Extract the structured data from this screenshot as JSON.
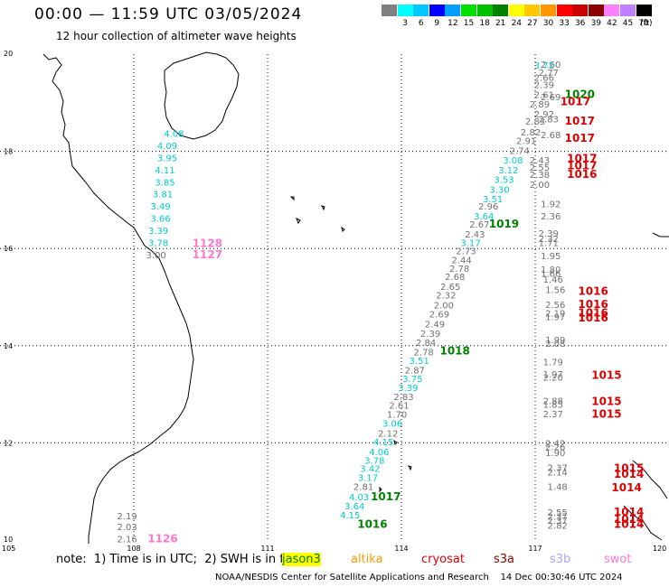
{
  "header": {
    "title": "00:00 — 11:59 UTC 03/05/2024",
    "subtitle": "12 hour collection of altimeter wave heights"
  },
  "legend": {
    "unit": "(ft)",
    "bins": [
      {
        "label": "",
        "color": "#808080"
      },
      {
        "label": "3",
        "color": "#00ffff"
      },
      {
        "label": "6",
        "color": "#00c8ff"
      },
      {
        "label": "9",
        "color": "#0000ff"
      },
      {
        "label": "12",
        "color": "#00a0ff"
      },
      {
        "label": "15",
        "color": "#00e000"
      },
      {
        "label": "18",
        "color": "#00c000"
      },
      {
        "label": "21",
        "color": "#008000"
      },
      {
        "label": "24",
        "color": "#ffff00"
      },
      {
        "label": "27",
        "color": "#ffc800"
      },
      {
        "label": "30",
        "color": "#ff9600"
      },
      {
        "label": "33",
        "color": "#ff0000"
      },
      {
        "label": "36",
        "color": "#c80000"
      },
      {
        "label": "39",
        "color": "#8b0000"
      },
      {
        "label": "42",
        "color": "#ff80ff"
      },
      {
        "label": "45",
        "color": "#c080ff"
      },
      {
        "label": "70",
        "color": "#000000"
      }
    ]
  },
  "map": {
    "lon_labels": [
      "105",
      "108",
      "111",
      "114",
      "117",
      "120"
    ],
    "lat_labels": [
      "20",
      "18",
      "16",
      "14",
      "12",
      "10"
    ],
    "readings": [
      {
        "text": "4.08",
        "c": "#00cccc",
        "lon": 108.9,
        "lat": 18.3
      },
      {
        "text": "4.09",
        "c": "#00cccc",
        "lon": 108.75,
        "lat": 18.05
      },
      {
        "text": "3.95",
        "c": "#00cccc",
        "lon": 108.75,
        "lat": 17.8
      },
      {
        "text": "4.11",
        "c": "#00cccc",
        "lon": 108.7,
        "lat": 17.55
      },
      {
        "text": "3.85",
        "c": "#00cccc",
        "lon": 108.7,
        "lat": 17.3
      },
      {
        "text": "3.81",
        "c": "#00cccc",
        "lon": 108.65,
        "lat": 17.05
      },
      {
        "text": "3.49",
        "c": "#00cccc",
        "lon": 108.6,
        "lat": 16.8
      },
      {
        "text": "3.66",
        "c": "#00cccc",
        "lon": 108.6,
        "lat": 16.55
      },
      {
        "text": "3.39",
        "c": "#00cccc",
        "lon": 108.55,
        "lat": 16.3
      },
      {
        "text": "3.78",
        "c": "#00cccc",
        "lon": 108.55,
        "lat": 16.05
      },
      {
        "text": "3.00",
        "c": "#707070",
        "lon": 108.5,
        "lat": 15.8
      },
      {
        "text": "2.19",
        "c": "#707070",
        "lon": 107.85,
        "lat": 10.43
      },
      {
        "text": "2.03",
        "c": "#707070",
        "lon": 107.85,
        "lat": 10.2
      },
      {
        "text": "2.16",
        "c": "#707070",
        "lon": 107.85,
        "lat": 9.95
      },
      {
        "text": "2.60",
        "c": "#707070",
        "lon": 117.35,
        "lat": 19.72
      },
      {
        "text": "3.72",
        "c": "#00cccc",
        "lon": 117.2,
        "lat": 19.7
      },
      {
        "text": "2.77",
        "c": "#707070",
        "lon": 117.3,
        "lat": 19.55
      },
      {
        "text": "2.66",
        "c": "#707070",
        "lon": 117.2,
        "lat": 19.45
      },
      {
        "text": "2.39",
        "c": "#707070",
        "lon": 117.2,
        "lat": 19.3
      },
      {
        "text": "2.61",
        "c": "#707070",
        "lon": 117.2,
        "lat": 19.1
      },
      {
        "text": "2.69",
        "c": "#707070",
        "lon": 117.35,
        "lat": 19.05
      },
      {
        "text": "2.89",
        "c": "#707070",
        "lon": 117.1,
        "lat": 18.9
      },
      {
        "text": "2.92",
        "c": "#707070",
        "lon": 117.2,
        "lat": 18.7
      },
      {
        "text": "2.83",
        "c": "#707070",
        "lon": 117.3,
        "lat": 18.6
      },
      {
        "text": "2.83",
        "c": "#707070",
        "lon": 117.0,
        "lat": 18.55
      },
      {
        "text": "2.82",
        "c": "#707070",
        "lon": 116.9,
        "lat": 18.33
      },
      {
        "text": "2.68",
        "c": "#707070",
        "lon": 117.35,
        "lat": 18.27
      },
      {
        "text": "2.91",
        "c": "#707070",
        "lon": 116.8,
        "lat": 18.15
      },
      {
        "text": "2.74",
        "c": "#707070",
        "lon": 116.65,
        "lat": 17.95
      },
      {
        "text": "2.43",
        "c": "#707070",
        "lon": 117.1,
        "lat": 17.75
      },
      {
        "text": "2.55",
        "c": "#707070",
        "lon": 117.1,
        "lat": 17.6
      },
      {
        "text": "3.08",
        "c": "#00cccc",
        "lon": 116.5,
        "lat": 17.75
      },
      {
        "text": "3.12",
        "c": "#00cccc",
        "lon": 116.4,
        "lat": 17.55
      },
      {
        "text": "2.38",
        "c": "#707070",
        "lon": 117.1,
        "lat": 17.45
      },
      {
        "text": "3.53",
        "c": "#00cccc",
        "lon": 116.3,
        "lat": 17.35
      },
      {
        "text": "2.00",
        "c": "#707070",
        "lon": 117.1,
        "lat": 17.25
      },
      {
        "text": "3.30",
        "c": "#00cccc",
        "lon": 116.2,
        "lat": 17.15
      },
      {
        "text": "3.51",
        "c": "#00cccc",
        "lon": 116.05,
        "lat": 16.95
      },
      {
        "text": "1.92",
        "c": "#707070",
        "lon": 117.35,
        "lat": 16.85
      },
      {
        "text": "2.96",
        "c": "#707070",
        "lon": 115.95,
        "lat": 16.8
      },
      {
        "text": "3.64",
        "c": "#00cccc",
        "lon": 115.85,
        "lat": 16.6
      },
      {
        "text": "2.36",
        "c": "#707070",
        "lon": 117.35,
        "lat": 16.6
      },
      {
        "text": "2.67",
        "c": "#707070",
        "lon": 115.75,
        "lat": 16.43
      },
      {
        "text": "2.43",
        "c": "#707070",
        "lon": 115.65,
        "lat": 16.23
      },
      {
        "text": "2.39",
        "c": "#707070",
        "lon": 117.3,
        "lat": 16.25
      },
      {
        "text": "2.32",
        "c": "#707070",
        "lon": 117.3,
        "lat": 16.13
      },
      {
        "text": "1.71",
        "c": "#707070",
        "lon": 117.3,
        "lat": 16.05
      },
      {
        "text": "3.17",
        "c": "#00cccc",
        "lon": 115.55,
        "lat": 16.05
      },
      {
        "text": "2.73",
        "c": "#707070",
        "lon": 115.45,
        "lat": 15.88
      },
      {
        "text": "1.95",
        "c": "#707070",
        "lon": 117.35,
        "lat": 15.78
      },
      {
        "text": "2.44",
        "c": "#707070",
        "lon": 115.35,
        "lat": 15.7
      },
      {
        "text": "2.78",
        "c": "#707070",
        "lon": 115.3,
        "lat": 15.52
      },
      {
        "text": "1.80",
        "c": "#707070",
        "lon": 117.35,
        "lat": 15.5
      },
      {
        "text": "1.66",
        "c": "#707070",
        "lon": 117.35,
        "lat": 15.42
      },
      {
        "text": "2.68",
        "c": "#707070",
        "lon": 115.2,
        "lat": 15.35
      },
      {
        "text": "1.46",
        "c": "#707070",
        "lon": 117.4,
        "lat": 15.3
      },
      {
        "text": "2.65",
        "c": "#707070",
        "lon": 115.1,
        "lat": 15.15
      },
      {
        "text": "1.56",
        "c": "#707070",
        "lon": 117.45,
        "lat": 15.08
      },
      {
        "text": "2.32",
        "c": "#707070",
        "lon": 115.0,
        "lat": 14.97
      },
      {
        "text": "2.00",
        "c": "#707070",
        "lon": 114.95,
        "lat": 14.77
      },
      {
        "text": "2.56",
        "c": "#707070",
        "lon": 117.45,
        "lat": 14.78
      },
      {
        "text": "2.69",
        "c": "#707070",
        "lon": 114.85,
        "lat": 14.58
      },
      {
        "text": "2.19",
        "c": "#707070",
        "lon": 117.45,
        "lat": 14.6
      },
      {
        "text": "1.97",
        "c": "#707070",
        "lon": 117.45,
        "lat": 14.53
      },
      {
        "text": "2.49",
        "c": "#707070",
        "lon": 114.75,
        "lat": 14.38
      },
      {
        "text": "2.39",
        "c": "#707070",
        "lon": 114.65,
        "lat": 14.18
      },
      {
        "text": "2.84",
        "c": "#707070",
        "lon": 114.55,
        "lat": 14.0
      },
      {
        "text": "1.99",
        "c": "#707070",
        "lon": 117.45,
        "lat": 14.05
      },
      {
        "text": "2.08",
        "c": "#707070",
        "lon": 117.45,
        "lat": 13.98
      },
      {
        "text": "2.78",
        "c": "#707070",
        "lon": 114.5,
        "lat": 13.8
      },
      {
        "text": "3.51",
        "c": "#00cccc",
        "lon": 114.4,
        "lat": 13.62
      },
      {
        "text": "1.79",
        "c": "#707070",
        "lon": 117.4,
        "lat": 13.6
      },
      {
        "text": "2.87",
        "c": "#707070",
        "lon": 114.3,
        "lat": 13.43
      },
      {
        "text": "1.97",
        "c": "#707070",
        "lon": 117.4,
        "lat": 13.35
      },
      {
        "text": "2.20",
        "c": "#707070",
        "lon": 117.4,
        "lat": 13.28
      },
      {
        "text": "3.75",
        "c": "#00cccc",
        "lon": 114.25,
        "lat": 13.25
      },
      {
        "text": "3.39",
        "c": "#00cccc",
        "lon": 114.15,
        "lat": 13.07
      },
      {
        "text": "2.83",
        "c": "#707070",
        "lon": 114.05,
        "lat": 12.88
      },
      {
        "text": "2.88",
        "c": "#707070",
        "lon": 117.4,
        "lat": 12.8
      },
      {
        "text": "1.85",
        "c": "#707070",
        "lon": 117.4,
        "lat": 12.72
      },
      {
        "text": "2.61",
        "c": "#707070",
        "lon": 113.95,
        "lat": 12.7
      },
      {
        "text": "1.70",
        "c": "#707070",
        "lon": 113.9,
        "lat": 12.52
      },
      {
        "text": "2.37",
        "c": "#707070",
        "lon": 117.4,
        "lat": 12.53
      },
      {
        "text": "3.06",
        "c": "#00cccc",
        "lon": 113.8,
        "lat": 12.33
      },
      {
        "text": "2.12",
        "c": "#707070",
        "lon": 113.7,
        "lat": 12.13
      },
      {
        "text": "2.42",
        "c": "#707070",
        "lon": 117.45,
        "lat": 11.92
      },
      {
        "text": "2.26",
        "c": "#707070",
        "lon": 117.45,
        "lat": 11.85
      },
      {
        "text": "4.15",
        "c": "#00cccc",
        "lon": 113.6,
        "lat": 11.95
      },
      {
        "text": "1.90",
        "c": "#707070",
        "lon": 117.45,
        "lat": 11.73
      },
      {
        "text": "4.06",
        "c": "#00cccc",
        "lon": 113.5,
        "lat": 11.75
      },
      {
        "text": "3.78",
        "c": "#00cccc",
        "lon": 113.4,
        "lat": 11.57
      },
      {
        "text": "2.37",
        "c": "#707070",
        "lon": 117.5,
        "lat": 11.42
      },
      {
        "text": "2.14",
        "c": "#707070",
        "lon": 117.5,
        "lat": 11.33
      },
      {
        "text": "3.42",
        "c": "#00cccc",
        "lon": 113.3,
        "lat": 11.4
      },
      {
        "text": "3.17",
        "c": "#00cccc",
        "lon": 113.25,
        "lat": 11.22
      },
      {
        "text": "1.48",
        "c": "#707070",
        "lon": 117.5,
        "lat": 11.03
      },
      {
        "text": "2.81",
        "c": "#707070",
        "lon": 113.15,
        "lat": 11.03
      },
      {
        "text": "4.03",
        "c": "#00cccc",
        "lon": 113.05,
        "lat": 10.82
      },
      {
        "text": "2.55",
        "c": "#707070",
        "lon": 117.5,
        "lat": 10.5
      },
      {
        "text": "3.64",
        "c": "#00cccc",
        "lon": 112.95,
        "lat": 10.63
      },
      {
        "text": "2.37",
        "c": "#707070",
        "lon": 117.5,
        "lat": 10.42
      },
      {
        "text": "2.37",
        "c": "#707070",
        "lon": 117.5,
        "lat": 10.33
      },
      {
        "text": "4.15",
        "c": "#00cccc",
        "lon": 112.85,
        "lat": 10.45
      },
      {
        "text": "2.82",
        "c": "#707070",
        "lon": 117.5,
        "lat": 10.23
      }
    ],
    "pressures": [
      {
        "text": "1128",
        "c": "#ff77cc",
        "lon": 109.65,
        "lat": 16.03
      },
      {
        "text": "1127",
        "c": "#ff77cc",
        "lon": 109.65,
        "lat": 15.8
      },
      {
        "text": "1126",
        "c": "#ff77cc",
        "lon": 108.65,
        "lat": 9.95
      },
      {
        "text": "1020",
        "c": "#008000",
        "lon": 118.0,
        "lat": 19.1
      },
      {
        "text": "1017",
        "c": "#dd0000",
        "lon": 117.9,
        "lat": 18.95
      },
      {
        "text": "1017",
        "c": "#dd0000",
        "lon": 118.0,
        "lat": 18.55
      },
      {
        "text": "1017",
        "c": "#dd0000",
        "lon": 118.0,
        "lat": 18.2
      },
      {
        "text": "1017",
        "c": "#dd0000",
        "lon": 118.05,
        "lat": 17.78
      },
      {
        "text": "1017",
        "c": "#dd0000",
        "lon": 118.05,
        "lat": 17.63
      },
      {
        "text": "1016",
        "c": "#dd0000",
        "lon": 118.05,
        "lat": 17.45
      },
      {
        "text": "1019",
        "c": "#008000",
        "lon": 116.3,
        "lat": 16.43
      },
      {
        "text": "1016",
        "c": "#dd0000",
        "lon": 118.3,
        "lat": 15.05
      },
      {
        "text": "1016",
        "c": "#dd0000",
        "lon": 118.3,
        "lat": 14.78
      },
      {
        "text": "1016",
        "c": "#dd0000",
        "lon": 118.3,
        "lat": 14.6
      },
      {
        "text": "1016",
        "c": "#dd0000",
        "lon": 118.3,
        "lat": 14.5
      },
      {
        "text": "1018",
        "c": "#008000",
        "lon": 115.2,
        "lat": 13.82
      },
      {
        "text": "1015",
        "c": "#dd0000",
        "lon": 118.6,
        "lat": 13.32
      },
      {
        "text": "1015",
        "c": "#dd0000",
        "lon": 118.6,
        "lat": 12.78
      },
      {
        "text": "1015",
        "c": "#dd0000",
        "lon": 118.6,
        "lat": 12.52
      },
      {
        "text": "1015",
        "c": "#dd0000",
        "lon": 119.1,
        "lat": 11.4
      },
      {
        "text": "1014",
        "c": "#dd0000",
        "lon": 119.1,
        "lat": 11.28
      },
      {
        "text": "1014",
        "c": "#dd0000",
        "lon": 119.05,
        "lat": 11.0
      },
      {
        "text": "1017",
        "c": "#008000",
        "lon": 113.65,
        "lat": 10.82
      },
      {
        "text": "1014",
        "c": "#dd0000",
        "lon": 119.1,
        "lat": 10.5
      },
      {
        "text": "1014",
        "c": "#dd0000",
        "lon": 119.1,
        "lat": 10.35
      },
      {
        "text": "1014",
        "c": "#dd0000",
        "lon": 119.1,
        "lat": 10.25
      },
      {
        "text": "1016",
        "c": "#008000",
        "lon": 113.35,
        "lat": 10.25
      }
    ]
  },
  "footer": {
    "note": "note:  1) Time is in UTC;  2) SWH is in feet",
    "satellites": [
      {
        "label": "jason3",
        "color": "#008000",
        "bg": "#ffff00"
      },
      {
        "label": "altika",
        "color": "#ff9900",
        "bg": ""
      },
      {
        "label": "cryosat",
        "color": "#dd0000",
        "bg": ""
      },
      {
        "label": "s3a",
        "color": "#8b0000",
        "bg": ""
      },
      {
        "label": "s3b",
        "color": "#b0a0ff",
        "bg": ""
      },
      {
        "label": "swot",
        "color": "#ff77cc",
        "bg": ""
      }
    ],
    "credit": "NOAA/NESDIS Center for Satellite Applications and Research    14 Dec 00:30:46 UTC 2024"
  }
}
